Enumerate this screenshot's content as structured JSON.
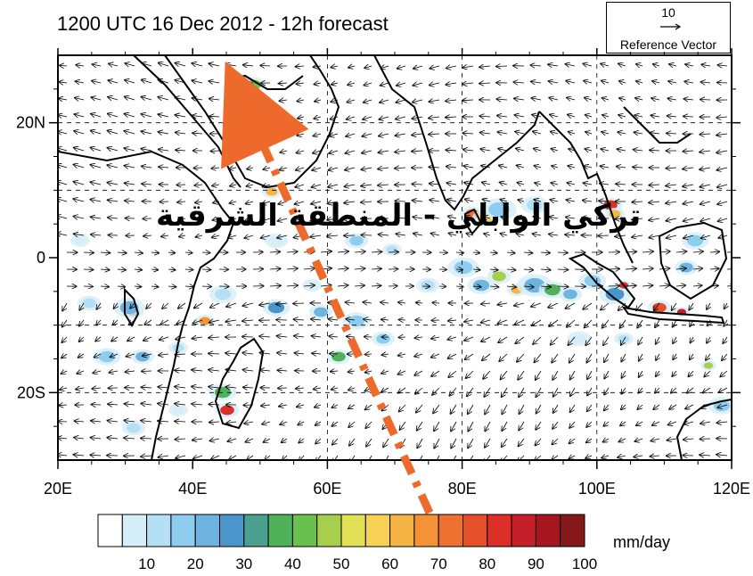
{
  "title": "1200 UTC 16 Dec 2012 - 12h forecast",
  "reference_vector": {
    "value": "10",
    "label": "Reference Vector"
  },
  "map": {
    "lon_range": [
      20,
      120
    ],
    "lat_range": [
      -30,
      30
    ],
    "lat_labels": [
      "20N",
      "0",
      "20S"
    ],
    "lon_labels": [
      "20E",
      "40E",
      "60E",
      "80E",
      "100E",
      "120E"
    ]
  },
  "overlay_text": "تركي الوابلي - المنطقة الشرقية",
  "colorbar": {
    "units": "mm/day",
    "tick_labels": [
      "10",
      "20",
      "30",
      "40",
      "50",
      "60",
      "70",
      "80",
      "90",
      "100"
    ],
    "colors": [
      "#ffffff",
      "#d6eef8",
      "#b5dff5",
      "#8ecdf0",
      "#6fb3e0",
      "#4a96cc",
      "#4b9f8f",
      "#4fb25b",
      "#6ac04c",
      "#a5cf4d",
      "#e2e054",
      "#f7d154",
      "#f6b445",
      "#f49238",
      "#ee7130",
      "#e5502b",
      "#dc2f28",
      "#c5202a",
      "#a5161f",
      "#861819"
    ]
  }
}
